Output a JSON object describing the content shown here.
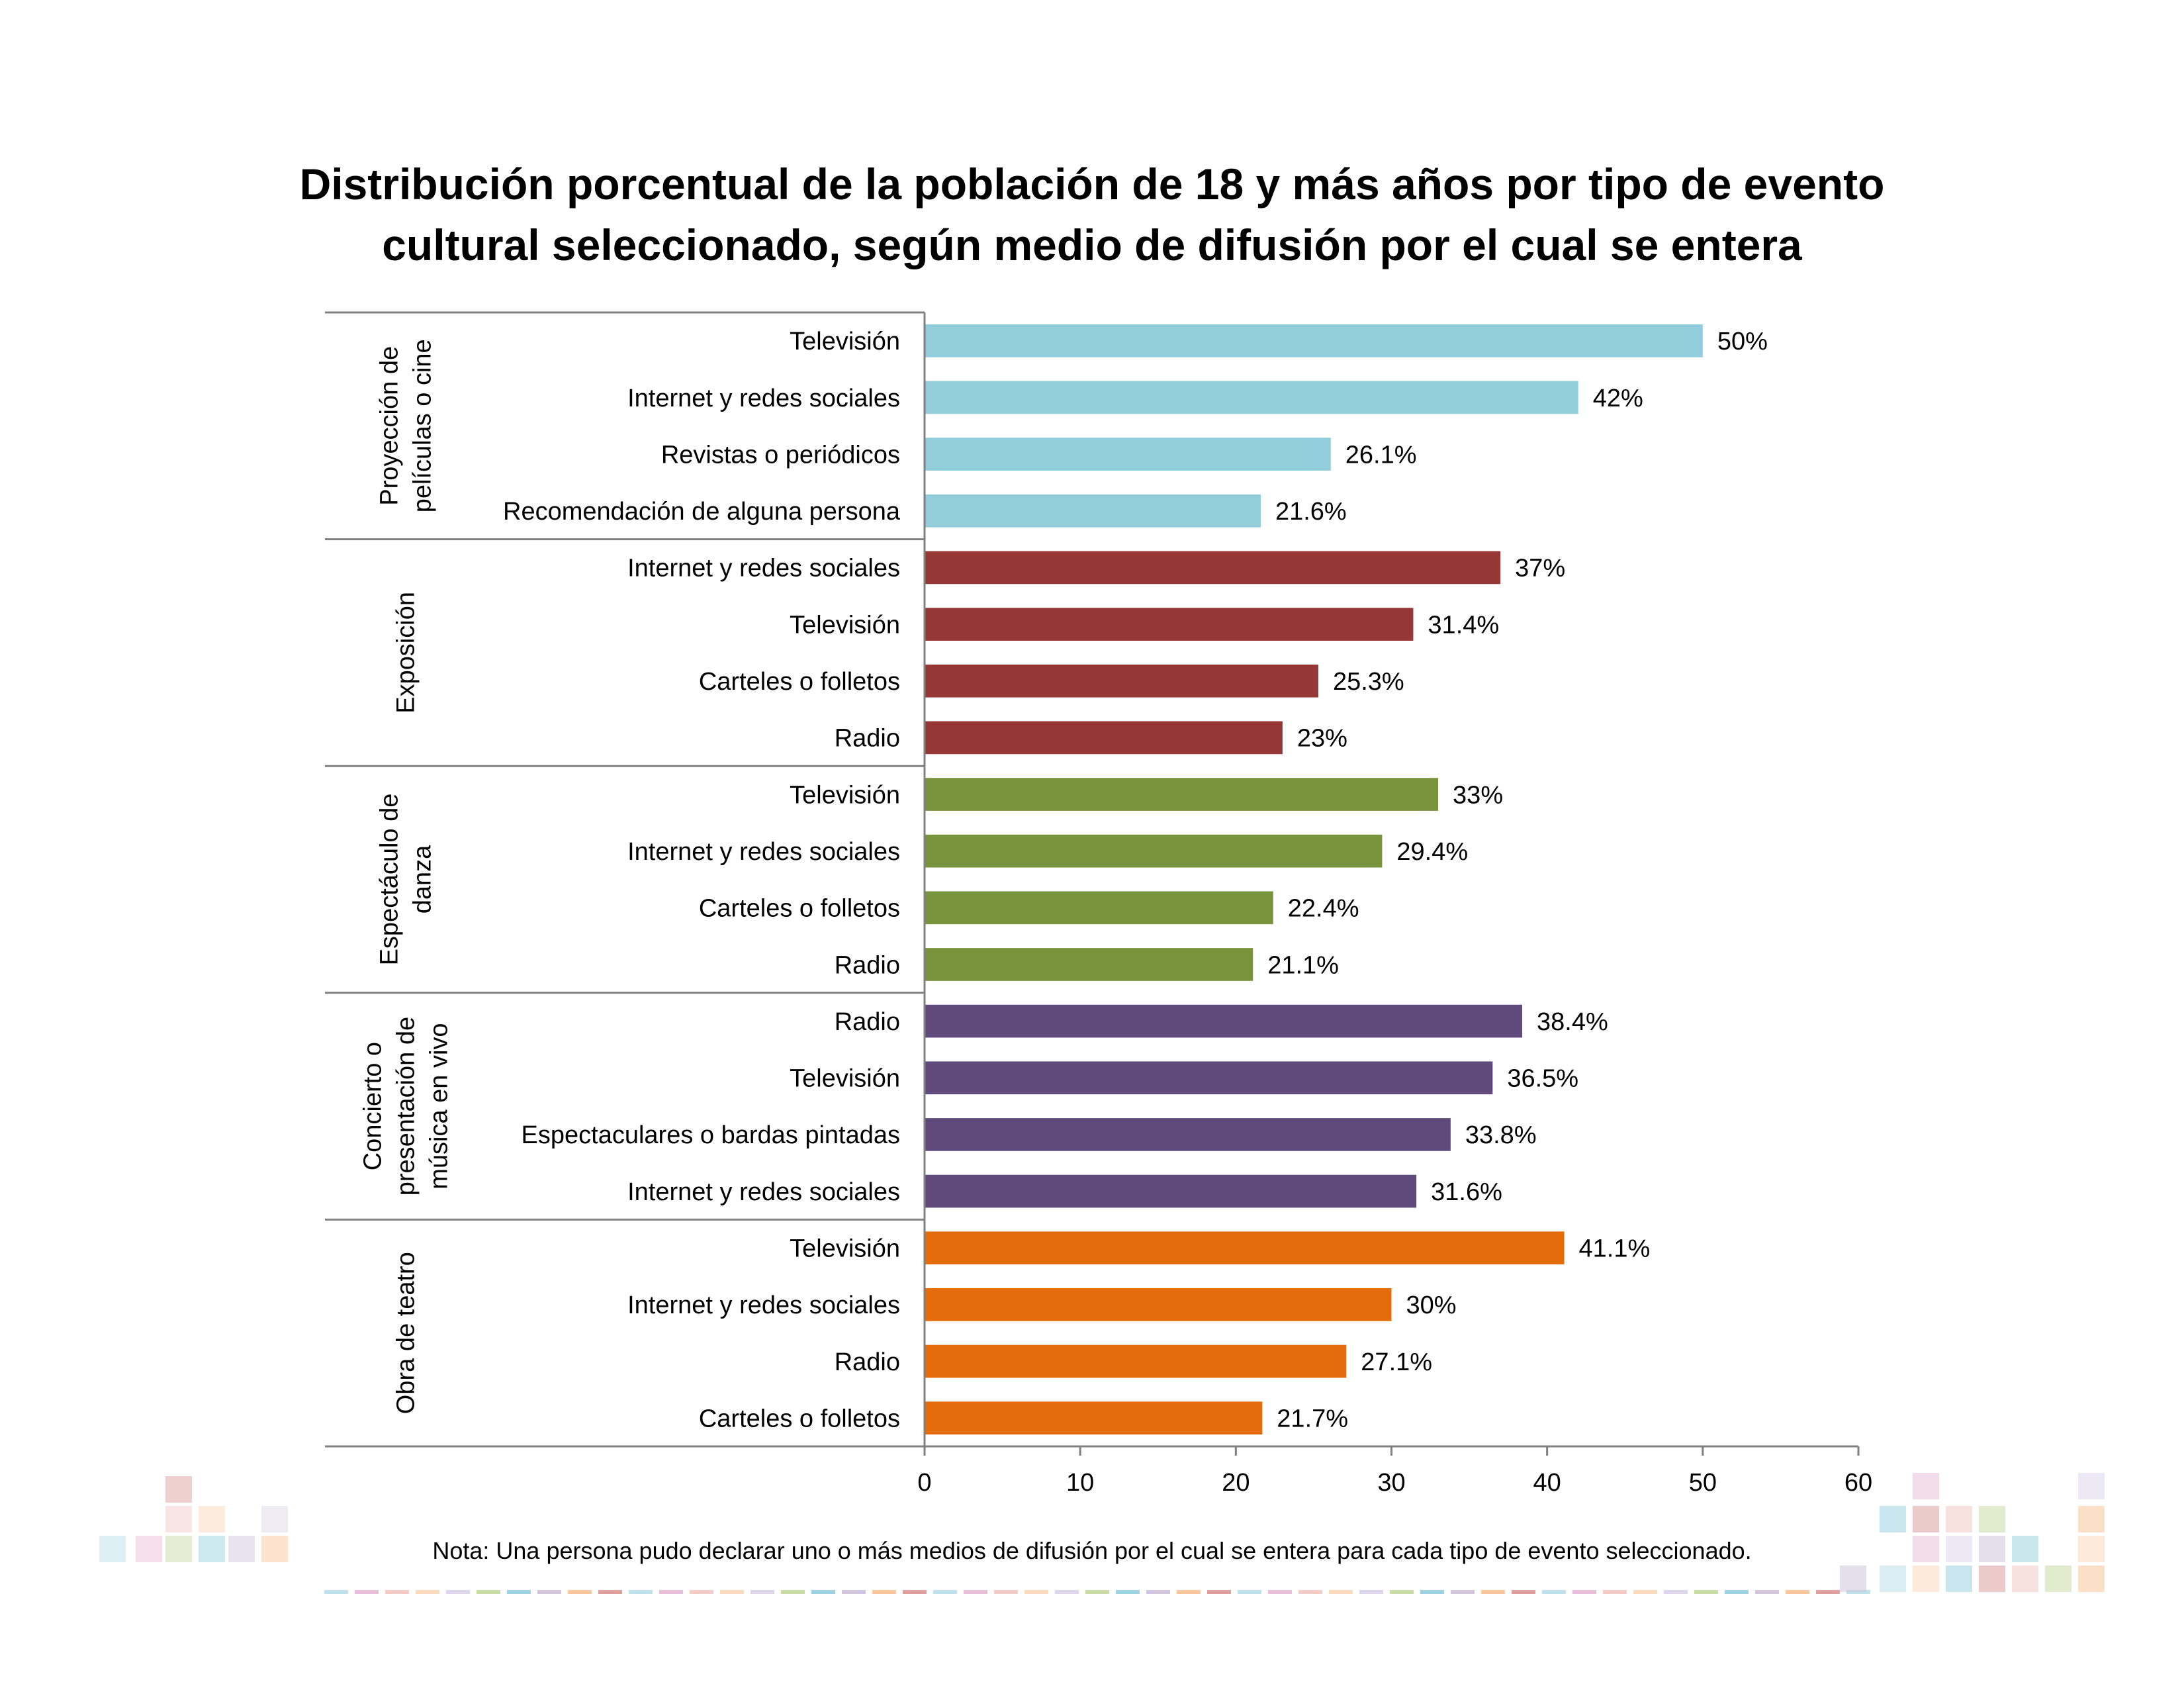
{
  "chart_data": {
    "type": "bar",
    "orientation": "horizontal",
    "title_lines": [
      "Distribución porcentual de la población de 18 y más años por tipo de evento",
      "cultural seleccionado, según medio de difusión por el cual se entera"
    ],
    "xlim": [
      0,
      60
    ],
    "xticks": [
      0,
      10,
      20,
      30,
      40,
      50,
      60
    ],
    "grid": false,
    "legend": "none",
    "groups": [
      {
        "name_lines": [
          "Proyección de",
          "películas o cine"
        ],
        "color": "#92CDDC",
        "items": [
          {
            "label": "Televisión",
            "value": 50,
            "value_label": "50%"
          },
          {
            "label": "Internet y redes sociales",
            "value": 42,
            "value_label": "42%"
          },
          {
            "label": "Revistas o periódicos",
            "value": 26.1,
            "value_label": "26.1%"
          },
          {
            "label": "Recomendación de alguna persona",
            "value": 21.6,
            "value_label": "21.6%"
          }
        ]
      },
      {
        "name_lines": [
          "Exposición"
        ],
        "color": "#953735",
        "items": [
          {
            "label": "Internet y redes sociales",
            "value": 37,
            "value_label": "37%"
          },
          {
            "label": "Televisión",
            "value": 31.4,
            "value_label": "31.4%"
          },
          {
            "label": "Carteles o folletos",
            "value": 25.3,
            "value_label": "25.3%"
          },
          {
            "label": "Radio",
            "value": 23,
            "value_label": "23%"
          }
        ]
      },
      {
        "name_lines": [
          "Espectáculo de",
          "danza"
        ],
        "color": "#77933C",
        "items": [
          {
            "label": "Televisión",
            "value": 33,
            "value_label": "33%"
          },
          {
            "label": "Internet y redes sociales",
            "value": 29.4,
            "value_label": "29.4%"
          },
          {
            "label": "Carteles o folletos",
            "value": 22.4,
            "value_label": "22.4%"
          },
          {
            "label": "Radio",
            "value": 21.1,
            "value_label": "21.1%"
          }
        ]
      },
      {
        "name_lines": [
          "Concierto o",
          "presentación de",
          "música en vivo"
        ],
        "color": "#604A7B",
        "items": [
          {
            "label": "Radio",
            "value": 38.4,
            "value_label": "38.4%"
          },
          {
            "label": "Televisión",
            "value": 36.5,
            "value_label": "36.5%"
          },
          {
            "label": "Espectaculares o bardas pintadas",
            "value": 33.8,
            "value_label": "33.8%"
          },
          {
            "label": "Internet y redes sociales",
            "value": 31.6,
            "value_label": "31.6%"
          }
        ]
      },
      {
        "name_lines": [
          "Obra de teatro"
        ],
        "color": "#E46C0A",
        "items": [
          {
            "label": "Televisión",
            "value": 41.1,
            "value_label": "41.1%"
          },
          {
            "label": "Internet y redes sociales",
            "value": 30,
            "value_label": "30%"
          },
          {
            "label": "Radio",
            "value": 27.1,
            "value_label": "27.1%"
          },
          {
            "label": "Carteles o folletos",
            "value": 21.7,
            "value_label": "21.7%"
          }
        ]
      }
    ]
  },
  "note": "Nota: Una persona pudo declarar uno o más medios de difusión por el cual se entera para cada tipo de evento seleccionado.",
  "colors": {
    "axis": "#808080",
    "text": "#000000",
    "decor_palette": [
      "#B7DEE8",
      "#E6B9D8",
      "#F2C6C2",
      "#FBD5B5",
      "#D9D2E9",
      "#C4D79B",
      "#93CDDD",
      "#CCC0DA",
      "#FAC090",
      "#D99694"
    ]
  }
}
